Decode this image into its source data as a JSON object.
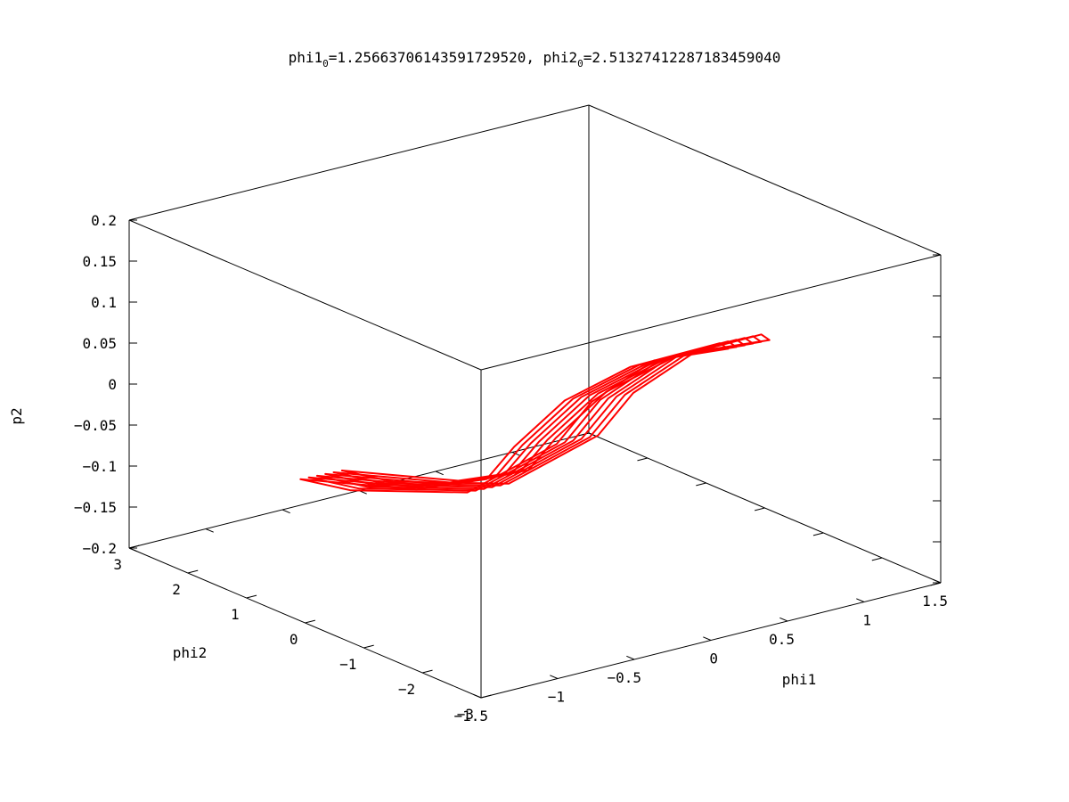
{
  "chart_data": {
    "type": "line",
    "projection": "3d",
    "title": {
      "part1": "phi1",
      "sub1": "0",
      "part2": "=1.25663706143591729520, phi2",
      "sub2": "0",
      "part3": "=2.51327412287183459040"
    },
    "xlabel": "phi1",
    "ylabel": "phi2",
    "zlabel": "p2",
    "xlim": [
      -1.5,
      1.5
    ],
    "ylim": [
      -3,
      3
    ],
    "zlim": [
      -0.2,
      0.2
    ],
    "x_ticks": [
      {
        "value": -1.5,
        "label": "−1.5"
      },
      {
        "value": -1,
        "label": "−1"
      },
      {
        "value": -0.5,
        "label": "−0.5"
      },
      {
        "value": 0,
        "label": "0"
      },
      {
        "value": 0.5,
        "label": "0.5"
      },
      {
        "value": 1,
        "label": "1"
      },
      {
        "value": 1.5,
        "label": "1.5"
      }
    ],
    "y_ticks": [
      {
        "value": -3,
        "label": "−3"
      },
      {
        "value": -2,
        "label": "−2"
      },
      {
        "value": -1,
        "label": "−1"
      },
      {
        "value": 0,
        "label": "0"
      },
      {
        "value": 1,
        "label": "1"
      },
      {
        "value": 2,
        "label": "2"
      },
      {
        "value": 3,
        "label": "3"
      }
    ],
    "z_ticks": [
      {
        "value": -0.2,
        "label": "−0.2"
      },
      {
        "value": -0.15,
        "label": "−0.15"
      },
      {
        "value": -0.1,
        "label": "−0.1"
      },
      {
        "value": -0.05,
        "label": "−0.05"
      },
      {
        "value": 0,
        "label": "0"
      },
      {
        "value": 0.05,
        "label": "0.05"
      },
      {
        "value": 0.1,
        "label": "0.1"
      },
      {
        "value": 0.15,
        "label": "0.15"
      },
      {
        "value": 0.2,
        "label": "0.2"
      }
    ],
    "series": [
      {
        "color": "#ff0000",
        "loops": 6,
        "points": [
          {
            "phi1": 0.4,
            "phi2": -2.6,
            "p2": 0.13
          },
          {
            "phi1": 0.5,
            "phi2": -2.2,
            "p2": 0.12
          },
          {
            "phi1": 0.3,
            "phi2": -1.2,
            "p2": 0.07
          },
          {
            "phi1": 0.1,
            "phi2": -0.6,
            "p2": 0.02
          },
          {
            "phi1": 0.0,
            "phi2": 0.0,
            "p2": -0.05
          },
          {
            "phi1": 0.05,
            "phi2": 0.6,
            "p2": -0.11
          },
          {
            "phi1": -0.1,
            "phi2": 1.4,
            "p2": -0.14
          },
          {
            "phi1": -0.4,
            "phi2": 2.6,
            "p2": -0.15
          },
          {
            "phi1": -0.3,
            "phi2": 2.0,
            "p2": -0.15
          },
          {
            "phi1": 0.0,
            "phi2": 0.8,
            "p2": -0.13
          },
          {
            "phi1": 0.2,
            "phi2": -0.2,
            "p2": -0.05
          },
          {
            "phi1": 0.2,
            "phi2": -0.8,
            "p2": 0.02
          },
          {
            "phi1": 0.3,
            "phi2": -1.6,
            "p2": 0.09
          },
          {
            "phi1": 0.4,
            "phi2": -2.6,
            "p2": 0.13
          }
        ]
      }
    ],
    "grid": false,
    "legend": "none"
  }
}
